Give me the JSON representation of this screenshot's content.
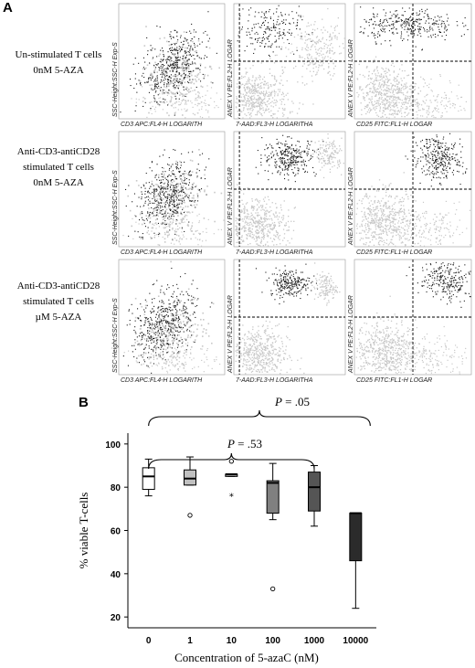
{
  "panel_a": {
    "label": "A",
    "rows": [
      {
        "label_lines": [
          "Un-stimulated T cells",
          "0nM 5-AZA"
        ]
      },
      {
        "label_lines": [
          "Anti-CD3-antiCD28",
          "stimulated T cells",
          "0nM 5-AZA"
        ]
      },
      {
        "label_lines": [
          "Anti-CD3-antiCD28",
          "stimulated T cells",
          "µM 5-AZA"
        ]
      }
    ],
    "plot_axes": {
      "col1_y": "SSC-Height:SSC-H Exp-S",
      "col1_x": "CD3 APC:FL4-H LOGARITH",
      "col2_y": "ANEX V PE:FL2-H LOGAR",
      "col2_x": "7-AAD:FL3-H LOGARITHA",
      "col3_y": "ANEX V PE:FL2-H LOGAR",
      "col3_x": "CD25 FITC:FL1-H LOGAR"
    },
    "gray_color": "#c8c8c8",
    "black_color": "#1a1a1a"
  },
  "panel_b": {
    "label": "B",
    "p_outer": "P = .05",
    "p_inner": "P = .53"
  },
  "chart_data": {
    "type": "box",
    "ylabel": "% viable T-cells",
    "xlabel": "Concentration of 5-azaC (nM)",
    "categories": [
      "0",
      "1",
      "10",
      "100",
      "1000",
      "10000"
    ],
    "ylim": [
      15,
      105
    ],
    "yticks": [
      20,
      40,
      60,
      80,
      100
    ],
    "boxes": [
      {
        "category": "0",
        "min": 76,
        "q1": 79,
        "median": 85,
        "q3": 89,
        "max": 93,
        "fill": "#ffffff",
        "outliers": []
      },
      {
        "category": "1",
        "min": 81,
        "q1": 81,
        "median": 84,
        "q3": 88,
        "max": 94,
        "fill": "#c0c0c0",
        "outliers": [
          {
            "y": 67,
            "marker": "circle"
          }
        ]
      },
      {
        "category": "10",
        "min": 85,
        "q1": 85,
        "median": 86,
        "q3": 86,
        "max": 86,
        "fill": "#a0a0a0",
        "outliers": [
          {
            "y": 92,
            "marker": "circle"
          },
          {
            "y": 76,
            "marker": "star"
          }
        ]
      },
      {
        "category": "100",
        "min": 65,
        "q1": 68,
        "median": 82,
        "q3": 83,
        "max": 91,
        "fill": "#808080",
        "outliers": [
          {
            "y": 33,
            "marker": "circle"
          }
        ]
      },
      {
        "category": "1000",
        "min": 62,
        "q1": 69,
        "median": 80,
        "q3": 87,
        "max": 90,
        "fill": "#555555",
        "outliers": []
      },
      {
        "category": "10000",
        "min": 24,
        "q1": 46,
        "median": 68,
        "q3": 68,
        "max": 68,
        "fill": "#2b2b2b",
        "outliers": []
      }
    ],
    "brackets": [
      {
        "from": "0",
        "to": "10000",
        "label": "P = .05"
      },
      {
        "from": "0",
        "to": "1000",
        "label": "P = .53"
      }
    ]
  }
}
